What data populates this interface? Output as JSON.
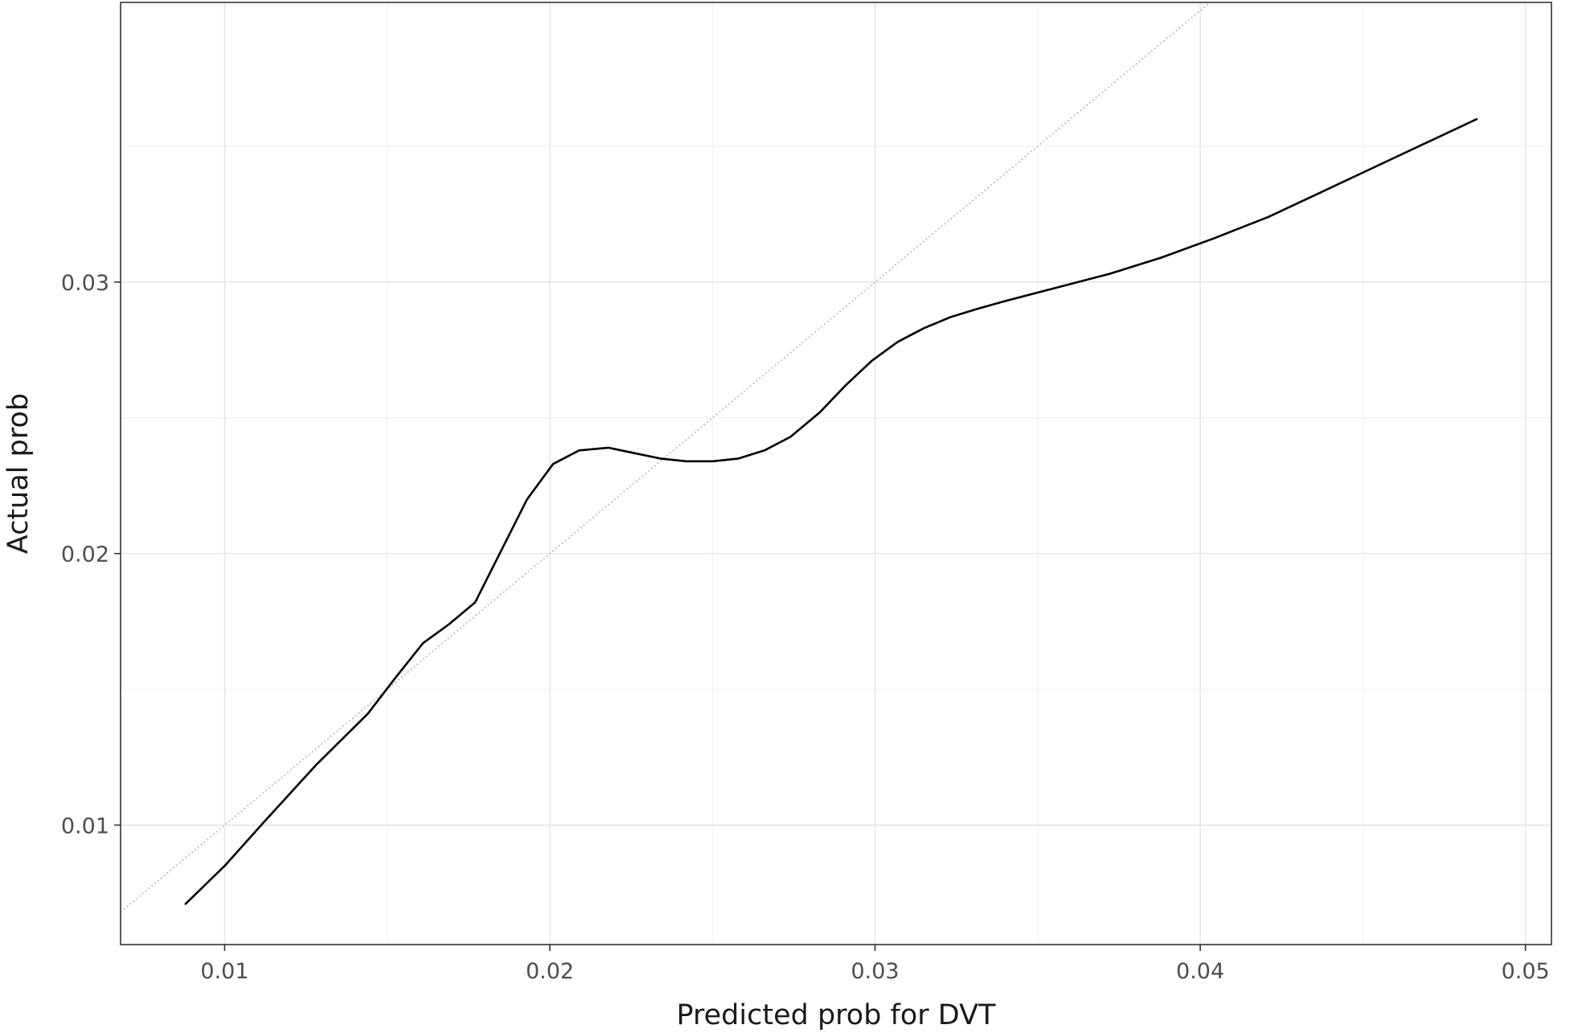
{
  "chart_data": {
    "type": "line",
    "title": "",
    "xlabel": "Predicted prob for DVT",
    "ylabel": "Actual prob",
    "xlim": [
      0.0068,
      0.0508
    ],
    "ylim": [
      0.0056,
      0.0403
    ],
    "x_ticks": [
      0.01,
      0.02,
      0.03,
      0.04,
      0.05
    ],
    "x_tick_labels": [
      "0.01",
      "0.02",
      "0.03",
      "0.04",
      "0.05"
    ],
    "y_ticks": [
      0.01,
      0.02,
      0.03
    ],
    "y_tick_labels": [
      "0.01",
      "0.02",
      "0.03"
    ],
    "grid": true,
    "legend": "none",
    "reference_line": {
      "style": "dotted",
      "slope": 1,
      "intercept": 0,
      "color": "#b3b3b3"
    },
    "series": [
      {
        "color": "#000000",
        "x": [
          0.0088,
          0.01,
          0.0112,
          0.0128,
          0.0144,
          0.0153,
          0.0161,
          0.0169,
          0.0177,
          0.0185,
          0.0193,
          0.0201,
          0.0209,
          0.0218,
          0.0226,
          0.0234,
          0.0242,
          0.025,
          0.0258,
          0.0266,
          0.0274,
          0.0283,
          0.0291,
          0.0299,
          0.0307,
          0.0315,
          0.0323,
          0.0331,
          0.034,
          0.0356,
          0.0372,
          0.0388,
          0.0404,
          0.0421,
          0.0437,
          0.0453,
          0.0469,
          0.0485
        ],
        "y": [
          0.0071,
          0.0085,
          0.0101,
          0.0122,
          0.0141,
          0.0155,
          0.0167,
          0.0174,
          0.0182,
          0.0201,
          0.022,
          0.0233,
          0.0238,
          0.0239,
          0.0237,
          0.0235,
          0.0234,
          0.0234,
          0.0235,
          0.0238,
          0.0243,
          0.0252,
          0.0262,
          0.0271,
          0.0278,
          0.0283,
          0.0287,
          0.029,
          0.0293,
          0.0298,
          0.0303,
          0.0309,
          0.0316,
          0.0324,
          0.0333,
          0.0342,
          0.0351,
          0.036
        ]
      }
    ]
  }
}
